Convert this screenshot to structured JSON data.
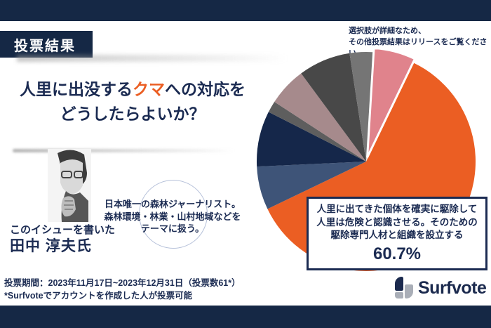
{
  "colors": {
    "navy_bar": "#152845",
    "navy_text": "#1B2B52",
    "accent_orange": "#EB5E23",
    "logo_navy": "#1B2A4E",
    "logo_gray": "#A9AEB7"
  },
  "header": {
    "badge": "投票結果"
  },
  "title": {
    "line1_pre": "人里に出没する",
    "line1_highlight": "クマ",
    "line1_post": "への対応を",
    "line2": "どうしたらよいか？"
  },
  "note": {
    "line1": "選択肢が詳細なため、",
    "line2": "その他投票結果はリリースをご覧ください。"
  },
  "author": {
    "caption": "このイシューを書いた",
    "name": "田中 淳夫氏",
    "bio_line1": "日本唯一の森林ジャーナリスト。",
    "bio_line2": "森林環境・林業・山村地域などを",
    "bio_line3": "テーマに扱う。"
  },
  "result_box": {
    "line1": "人里に出てきた個体を確実に駆除して",
    "line2": "人里は危険と認識させる。そのための",
    "line3": "駆除専門人材と組織を設立する",
    "percent": "60.7%"
  },
  "footer": {
    "period": "投票期間：2023年11月17日~2023年12月31日（投票数61*）",
    "note": "*Surfvoteでアカウントを作成した人が投票可能",
    "brand": "Surfvote"
  },
  "chart_data": {
    "type": "pie",
    "title": "人里に出没するクマへの対応をどうしたらよいか？ 投票結果",
    "total_votes": 61,
    "legend_position": "none",
    "start_angle_deg_clockwise_from_top": 3.5,
    "labeled_value": {
      "label": "人里に出てきた個体を確実に駆除して人里は危険と認識させる。そのための駆除専門人材と組織を設立する",
      "percent": 60.7
    },
    "slices": [
      {
        "name": "other-option-pink",
        "percent": 6.2,
        "color": "#E0838C",
        "exploded": true
      },
      {
        "name": "駆除専門人材と組織を設立する",
        "percent": 60.7,
        "color": "#EB5E23",
        "exploded": false
      },
      {
        "name": "other-option-slate-blue",
        "percent": 6.4,
        "color": "#3E5478",
        "exploded": false
      },
      {
        "name": "other-option-dark-navy",
        "percent": 8.2,
        "color": "#15274A",
        "exploded": false
      },
      {
        "name": "other-option-gray-sliver",
        "percent": 1.7,
        "color": "#5E5E5E",
        "exploded": false
      },
      {
        "name": "other-option-mauve",
        "percent": 5.7,
        "color": "#A68A8C",
        "exploded": false
      },
      {
        "name": "other-option-charcoal",
        "percent": 7.7,
        "color": "#484848",
        "exploded": false
      },
      {
        "name": "other-option-medium-gray",
        "percent": 3.4,
        "color": "#757575",
        "exploded": false
      }
    ],
    "note": "選択肢が詳細なため、その他投票結果はリリースをご覧ください。"
  }
}
